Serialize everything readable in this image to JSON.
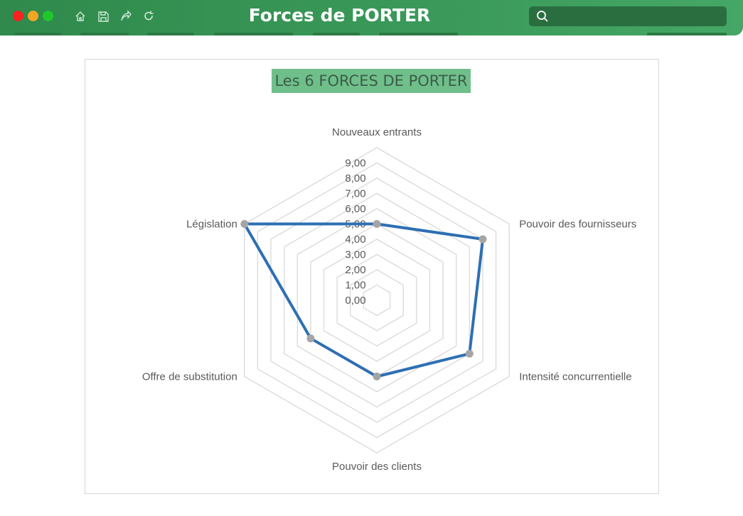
{
  "window": {
    "title": "Forces de PORTER",
    "icons": [
      "home-icon",
      "save-icon",
      "share-icon",
      "refresh-icon",
      "search-icon"
    ],
    "search_placeholder": ""
  },
  "colors": {
    "titlebar": "#3b9a5a",
    "chart_title_bg": "#6fbf8b",
    "series_line": "#2e6fb3",
    "marker": "#a5a5a5",
    "grid": "#d9d9d9"
  },
  "chart_data": {
    "type": "radar",
    "title": "Les 6 FORCES DE PORTER",
    "categories": [
      "Nouveaux entrants",
      "Pouvoir des fournisseurs",
      "Intensité concurrentielle",
      "Pouvoir des clients",
      "Offre de substitution",
      "Législation"
    ],
    "series": [
      {
        "values": [
          5,
          8,
          7,
          5,
          5,
          10
        ]
      }
    ],
    "rmin": 0,
    "rmax": 10,
    "tick_labels": [
      "0,00",
      "1,00",
      "2,00",
      "3,00",
      "4,00",
      "5,00",
      "6,00",
      "7,00",
      "8,00",
      "9,00"
    ],
    "grid": true,
    "legend": "none"
  }
}
